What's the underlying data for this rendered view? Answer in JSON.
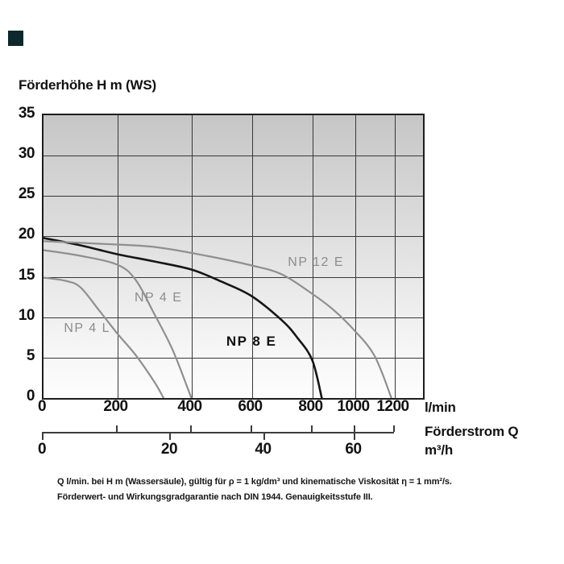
{
  "page": {
    "corner_marker_color": "#0d272c"
  },
  "title": "Förderhöhe H m (WS)",
  "axis": {
    "y_ticks": [
      "35",
      "30",
      "25",
      "20",
      "15",
      "10",
      "5",
      "0"
    ],
    "x_ticks_lpm": [
      "0",
      "200",
      "400",
      "600",
      "800",
      "1000",
      "1200"
    ],
    "x_unit_primary": "l/min",
    "x_axis_title": "Förderstrom Q",
    "x_unit_secondary": "m³/h",
    "x_ticks_m3h": [
      "0",
      "20",
      "40",
      "60"
    ]
  },
  "footnote": {
    "line1": "Q l/min. bei H m (Wassersäule), gültig für ρ = 1 kg/dm³ und kinematische Viskosität η = 1 mm²/s.",
    "line2": "Förderwert- und Wirkungsgradgarantie nach DIN 1944. Genauigkeitsstufe III."
  },
  "chart_data": {
    "type": "line",
    "title": "Förderhöhe H m (WS)",
    "ylabel": "Förderhöhe H m (WS)",
    "xlabel": "Förderstrom Q",
    "x_units": [
      "l/min",
      "m³/h"
    ],
    "ylim": [
      0,
      35
    ],
    "xlim_lpm": [
      0,
      1290
    ],
    "x_ticks_lpm": [
      0,
      200,
      400,
      600,
      800,
      1000,
      1200
    ],
    "x_ticks_m3h": [
      0,
      20,
      40,
      60
    ],
    "grid": true,
    "legend_position": "inline-labels",
    "series": [
      {
        "name": "NP 4 L",
        "color": "#8f8f8f",
        "width": 2.2,
        "label_frac": [
          0.115,
          0.755
        ],
        "label_size": 16,
        "label_weight": 400,
        "label_color": "#8c8c8c",
        "points_lpm_m": [
          [
            0,
            14.9
          ],
          [
            60,
            14.5
          ],
          [
            100,
            13.7
          ],
          [
            150,
            10.9
          ],
          [
            200,
            8.0
          ],
          [
            250,
            5.3
          ],
          [
            300,
            2.0
          ],
          [
            325,
            0
          ]
        ]
      },
      {
        "name": "NP 4 E",
        "color": "#8f8f8f",
        "width": 2.2,
        "label_frac": [
          0.303,
          0.647
        ],
        "label_size": 16,
        "label_weight": 400,
        "label_color": "#8c8c8c",
        "points_lpm_m": [
          [
            0,
            18.3
          ],
          [
            100,
            17.6
          ],
          [
            200,
            16.5
          ],
          [
            250,
            14.6
          ],
          [
            300,
            10.4
          ],
          [
            350,
            5.9
          ],
          [
            400,
            0
          ]
        ]
      },
      {
        "name": "NP 8 E",
        "color": "#161616",
        "width": 2.6,
        "label_frac": [
          0.548,
          0.801
        ],
        "label_size": 17,
        "label_weight": 600,
        "label_color": "#111111",
        "points_lpm_m": [
          [
            0,
            19.8
          ],
          [
            100,
            18.9
          ],
          [
            200,
            17.8
          ],
          [
            300,
            16.9
          ],
          [
            400,
            15.9
          ],
          [
            500,
            14.4
          ],
          [
            600,
            12.6
          ],
          [
            700,
            9.6
          ],
          [
            750,
            7.5
          ],
          [
            800,
            4.7
          ],
          [
            845,
            0
          ]
        ]
      },
      {
        "name": "NP 12 E",
        "color": "#8f8f8f",
        "width": 2.2,
        "label_frac": [
          0.718,
          0.521
        ],
        "label_size": 16,
        "label_weight": 400,
        "label_color": "#8c8c8c",
        "points_lpm_m": [
          [
            0,
            19.4
          ],
          [
            150,
            19.1
          ],
          [
            300,
            18.7
          ],
          [
            450,
            17.6
          ],
          [
            600,
            16.4
          ],
          [
            700,
            15.3
          ],
          [
            800,
            12.9
          ],
          [
            900,
            10.9
          ],
          [
            1000,
            8.3
          ],
          [
            1100,
            5.2
          ],
          [
            1185,
            0
          ]
        ]
      }
    ]
  }
}
